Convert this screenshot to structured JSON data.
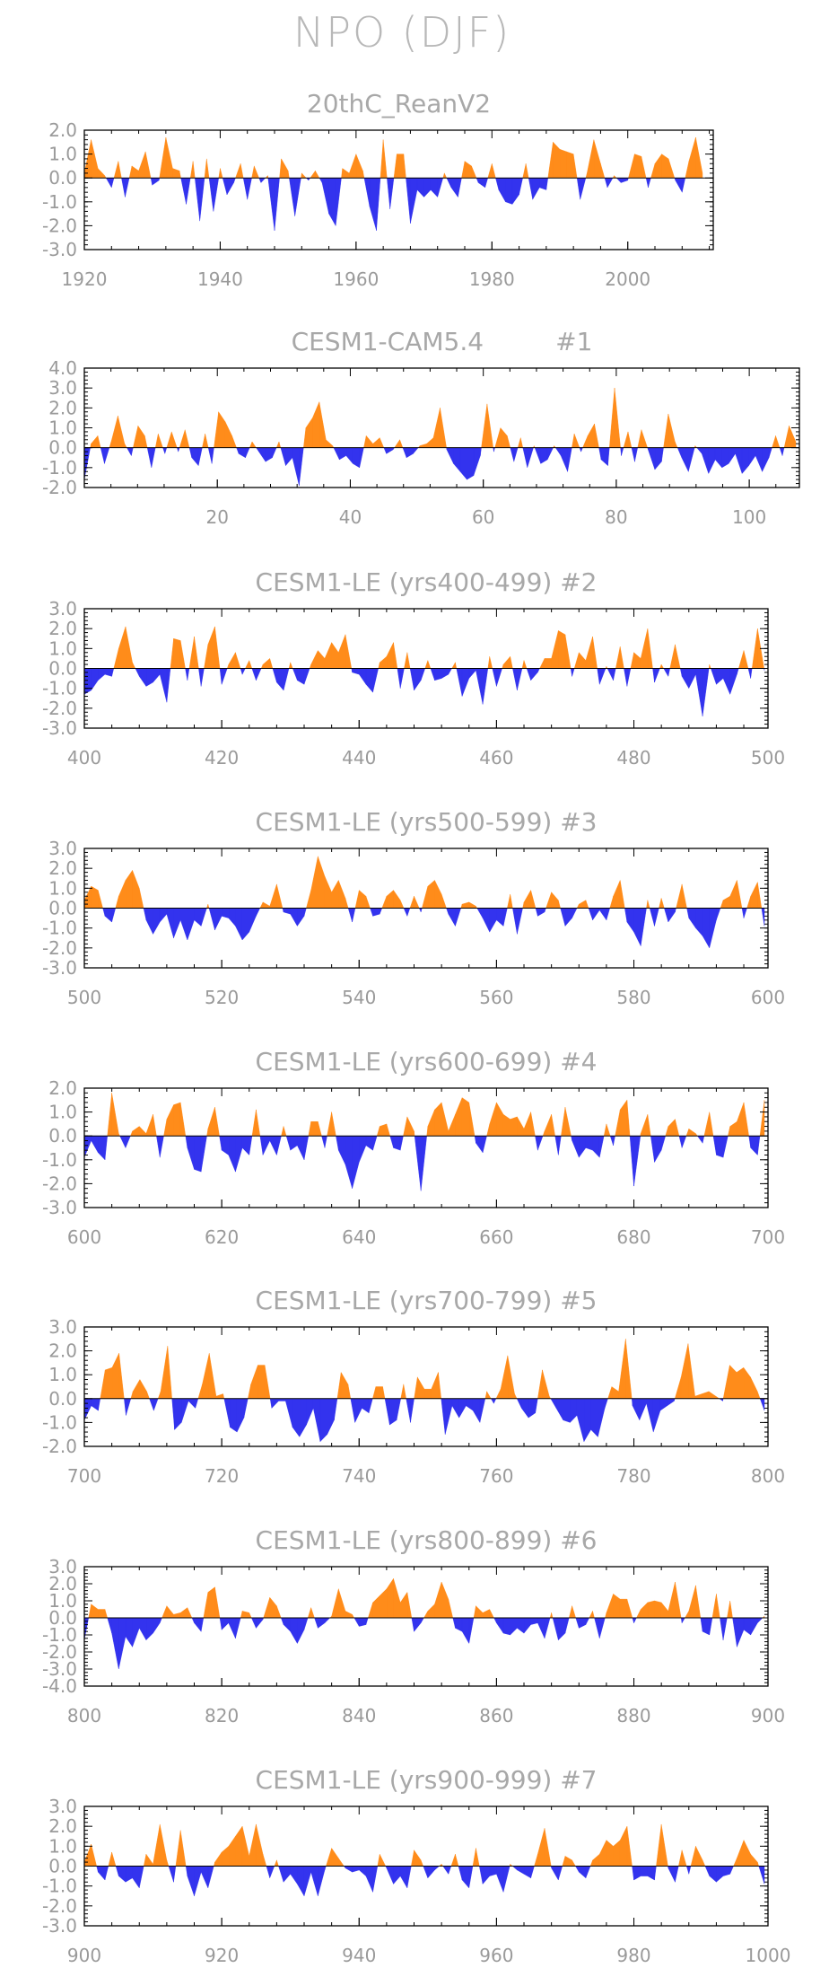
{
  "main_title": "NPO (DJF)",
  "colors": {
    "positive": "#ff8c1a",
    "negative": "#3333ee",
    "text": "#a8a8a8"
  },
  "chart_data": [
    {
      "type": "area",
      "title": "20thC_ReanV2",
      "xlim": [
        1920,
        2011
      ],
      "x_ticks": [
        1920,
        1940,
        1960,
        1980,
        2000
      ],
      "ylim": [
        -3.0,
        2.0
      ],
      "y_ticks": [
        2.0,
        1.0,
        0.0,
        -1.0,
        -2.0,
        -3.0
      ],
      "y_tick_labels": [
        "2.0",
        "1.0",
        "0.0",
        "-1.0",
        "-2.0",
        "-3.0"
      ],
      "values": [
        0.2,
        1.6,
        0.4,
        0.1,
        -0.4,
        0.7,
        -0.8,
        0.5,
        0.3,
        1.1,
        -0.3,
        -0.1,
        1.7,
        0.4,
        0.3,
        -1.1,
        0.7,
        -1.8,
        0.8,
        -1.4,
        0.4,
        -0.7,
        -0.2,
        0.6,
        -0.9,
        0.5,
        -0.2,
        0.1,
        -2.2,
        0.8,
        0.3,
        -1.6,
        0.2,
        -0.1,
        0.3,
        -0.2,
        -1.5,
        -2.0,
        0.4,
        0.2,
        1.0,
        0.3,
        -1.2,
        -2.2,
        1.6,
        -1.3,
        1.0,
        1.0,
        -1.9,
        -0.5,
        -0.8,
        -0.5,
        -0.8,
        0.2,
        -0.4,
        -0.8,
        0.7,
        0.5,
        -0.2,
        -0.4,
        0.6,
        -0.5,
        -1.0,
        -1.1,
        -0.7,
        0.6,
        -0.9,
        -0.4,
        -0.5,
        1.5,
        1.2,
        1.1,
        1.0,
        -0.9,
        0.2,
        1.6,
        0.6,
        -0.4,
        0.1,
        -0.2,
        -0.1,
        1.0,
        0.9,
        -0.4,
        0.6,
        1.0,
        0.8,
        -0.1,
        -0.6,
        0.7,
        1.7,
        0.2
      ]
    },
    {
      "type": "area",
      "title": "CESM1-CAM5.4         #1",
      "xlim": [
        0,
        107
      ],
      "x_ticks": [
        20,
        40,
        60,
        80,
        100
      ],
      "ylim": [
        -2.0,
        4.0
      ],
      "y_ticks": [
        4.0,
        3.0,
        2.0,
        1.0,
        0.0,
        -1.0,
        -2.0
      ],
      "y_tick_labels": [
        "4.0",
        "3.0",
        "2.0",
        "1.0",
        "0.0",
        "-1.0",
        "-2.0"
      ],
      "values": [
        -1.6,
        0.2,
        0.6,
        -0.8,
        0.3,
        1.6,
        0.2,
        -0.4,
        1.1,
        0.6,
        -1.0,
        0.7,
        -0.3,
        0.8,
        -0.2,
        0.9,
        -0.5,
        -0.9,
        0.7,
        -0.8,
        1.8,
        1.3,
        0.6,
        -0.3,
        -0.5,
        0.3,
        -0.2,
        -0.7,
        -0.5,
        0.3,
        -0.9,
        -0.5,
        -1.9,
        1.0,
        1.5,
        2.3,
        0.4,
        0.1,
        -0.6,
        -0.4,
        -0.8,
        -1.0,
        0.6,
        0.2,
        0.5,
        -0.3,
        -0.1,
        0.4,
        -0.5,
        -0.3,
        0.1,
        0.2,
        0.5,
        2.0,
        -0.1,
        -0.8,
        -1.2,
        -1.6,
        -1.4,
        -0.4,
        2.2,
        -0.2,
        1.0,
        0.6,
        -0.7,
        0.5,
        -1.0,
        0.1,
        -0.8,
        -0.6,
        0.1,
        -0.4,
        -1.2,
        0.7,
        -0.2,
        0.6,
        1.2,
        -0.6,
        -0.9,
        3.0,
        -0.4,
        0.8,
        -0.7,
        0.9,
        -0.1,
        -1.1,
        -0.7,
        1.7,
        0.3,
        -0.5,
        -1.2,
        0.1,
        -0.3,
        -1.3,
        -0.6,
        -1.0,
        -0.8,
        -0.3,
        -1.3,
        -0.9,
        -0.4,
        -1.2,
        -0.5,
        0.6,
        -0.4,
        1.1,
        0.3
      ]
    },
    {
      "type": "area",
      "title": "CESM1-LE (yrs400-499) #2",
      "xlim": [
        400,
        499
      ],
      "x_ticks": [
        400,
        420,
        440,
        460,
        480,
        500
      ],
      "ylim": [
        -3.0,
        3.0
      ],
      "y_ticks": [
        3.0,
        2.0,
        1.0,
        0.0,
        -1.0,
        -2.0,
        -3.0
      ],
      "y_tick_labels": [
        "3.0",
        "2.0",
        "1.0",
        "0.0",
        "-1.0",
        "-2.0",
        "-3.0"
      ],
      "values": [
        -1.3,
        -1.1,
        -0.6,
        -0.3,
        -0.4,
        1.0,
        2.1,
        0.3,
        -0.4,
        -0.9,
        -0.7,
        -0.3,
        -1.7,
        1.5,
        1.4,
        -0.6,
        1.6,
        -0.9,
        1.2,
        2.1,
        -0.8,
        0.2,
        0.8,
        -0.3,
        0.4,
        -0.6,
        0.2,
        0.5,
        -0.7,
        -1.1,
        0.3,
        -0.6,
        -0.8,
        0.2,
        0.9,
        0.5,
        1.3,
        0.8,
        1.7,
        -0.2,
        -0.3,
        -0.8,
        -1.2,
        0.3,
        0.6,
        1.3,
        -1.0,
        0.8,
        -1.1,
        -0.6,
        0.4,
        -0.6,
        -0.5,
        -0.3,
        0.3,
        -1.4,
        -0.5,
        -0.1,
        -1.8,
        0.6,
        -0.9,
        0.2,
        0.6,
        -1.1,
        0.4,
        -0.6,
        -0.2,
        0.5,
        0.5,
        1.9,
        1.7,
        -0.4,
        0.8,
        0.4,
        1.6,
        -0.8,
        0.1,
        -0.6,
        1.1,
        -0.9,
        0.8,
        0.5,
        2.0,
        -0.7,
        0.2,
        -0.4,
        1.2,
        -0.4,
        -1.0,
        -0.3,
        -2.4,
        0.2,
        -0.8,
        -0.5,
        -1.3,
        -0.3,
        0.9,
        -0.5,
        2.0,
        -0.1
      ]
    },
    {
      "type": "area",
      "title": "CESM1-LE (yrs500-599) #3",
      "xlim": [
        500,
        599
      ],
      "x_ticks": [
        500,
        520,
        540,
        560,
        580,
        600
      ],
      "ylim": [
        -3.0,
        3.0
      ],
      "y_ticks": [
        3.0,
        2.0,
        1.0,
        0.0,
        -1.0,
        -2.0,
        -3.0
      ],
      "y_tick_labels": [
        "3.0",
        "2.0",
        "1.0",
        "0.0",
        "-1.0",
        "-2.0",
        "-3.0"
      ],
      "values": [
        0.4,
        1.1,
        0.9,
        -0.4,
        -0.7,
        0.6,
        1.4,
        1.9,
        1.0,
        -0.6,
        -1.3,
        -0.7,
        -0.3,
        -1.5,
        -0.6,
        -1.6,
        -0.6,
        -0.9,
        0.2,
        -1.1,
        -0.4,
        -0.5,
        -0.9,
        -1.6,
        -1.2,
        -0.4,
        0.3,
        0.1,
        1.2,
        -0.2,
        -0.3,
        -0.9,
        -0.4,
        0.9,
        2.6,
        1.6,
        0.8,
        1.4,
        0.5,
        -0.7,
        0.9,
        0.6,
        -0.4,
        -0.3,
        0.6,
        0.9,
        0.4,
        -0.4,
        0.6,
        -0.2,
        1.1,
        1.4,
        0.7,
        -0.3,
        -0.9,
        0.2,
        0.3,
        0.1,
        -0.5,
        -1.2,
        -0.6,
        -0.9,
        0.7,
        -1.3,
        0.3,
        0.9,
        -0.4,
        -0.2,
        0.8,
        0.4,
        -0.9,
        -0.5,
        0.2,
        0.4,
        -0.6,
        -0.1,
        -0.6,
        0.6,
        1.4,
        -0.7,
        -1.2,
        -1.9,
        0.4,
        -0.9,
        0.5,
        -0.7,
        -0.2,
        1.2,
        -0.5,
        -1.0,
        -1.4,
        -2.0,
        -0.6,
        0.4,
        0.6,
        1.4,
        -0.5,
        0.6,
        1.3,
        -0.9
      ]
    },
    {
      "type": "area",
      "title": "CESM1-LE (yrs600-699) #4",
      "xlim": [
        600,
        699
      ],
      "x_ticks": [
        600,
        620,
        640,
        660,
        680,
        700
      ],
      "ylim": [
        -3.0,
        2.0
      ],
      "y_ticks": [
        2.0,
        1.0,
        0.0,
        -1.0,
        -2.0,
        -3.0
      ],
      "y_tick_labels": [
        "2.0",
        "1.0",
        "0.0",
        "-1.0",
        "-2.0",
        "-3.0"
      ],
      "values": [
        -0.9,
        -0.2,
        -0.7,
        -1.0,
        1.8,
        0.1,
        -0.5,
        0.2,
        0.4,
        0.1,
        0.9,
        -0.9,
        0.7,
        1.3,
        1.4,
        -0.5,
        -1.4,
        -1.5,
        0.3,
        1.2,
        -0.6,
        -0.8,
        -1.5,
        -0.5,
        -0.8,
        1.1,
        -0.8,
        -0.2,
        -0.8,
        0.4,
        -0.6,
        -0.4,
        -1.0,
        0.6,
        0.6,
        -0.5,
        1.0,
        -0.6,
        -1.2,
        -2.2,
        -1.1,
        -0.4,
        -0.6,
        0.4,
        0.5,
        -0.5,
        -0.6,
        0.8,
        0.2,
        -2.3,
        0.4,
        1.1,
        1.4,
        0.2,
        0.9,
        1.6,
        1.4,
        -0.3,
        -0.7,
        0.5,
        1.4,
        0.9,
        0.7,
        0.8,
        0.3,
        1.0,
        -0.6,
        0.2,
        0.9,
        -0.8,
        1.2,
        -0.2,
        -0.9,
        -0.5,
        -0.6,
        -0.9,
        0.5,
        -0.4,
        1.1,
        1.5,
        -2.1,
        0.1,
        0.9,
        -1.1,
        -0.6,
        0.4,
        0.7,
        -0.5,
        0.3,
        0.1,
        -0.3,
        1.0,
        -0.8,
        -0.9,
        0.4,
        0.6,
        1.4,
        -0.5,
        -0.8,
        1.5
      ]
    },
    {
      "type": "area",
      "title": "CESM1-LE (yrs700-799) #5",
      "xlim": [
        700,
        799
      ],
      "x_ticks": [
        700,
        720,
        740,
        760,
        780,
        800
      ],
      "ylim": [
        -2.0,
        3.0
      ],
      "y_ticks": [
        3.0,
        2.0,
        1.0,
        0.0,
        -1.0,
        -2.0
      ],
      "y_tick_labels": [
        "3.0",
        "2.0",
        "1.0",
        "0.0",
        "-1.0",
        "-2.0"
      ],
      "values": [
        -0.9,
        -0.3,
        -0.5,
        1.2,
        1.3,
        1.9,
        -0.7,
        0.3,
        0.8,
        0.3,
        -0.5,
        0.3,
        2.2,
        -1.3,
        -1.0,
        -0.1,
        -0.4,
        0.6,
        1.9,
        0.1,
        0.2,
        -1.2,
        -1.4,
        -0.8,
        0.6,
        1.4,
        1.4,
        -0.4,
        -0.1,
        -0.1,
        -1.2,
        -1.6,
        -1.1,
        -0.4,
        -1.8,
        -1.5,
        -0.9,
        1.1,
        0.6,
        -1.0,
        -0.4,
        -0.6,
        0.5,
        0.5,
        -1.1,
        -0.9,
        0.6,
        -1.0,
        0.9,
        0.4,
        0.4,
        1.1,
        -1.5,
        -0.3,
        -0.8,
        -0.3,
        -0.5,
        -1.0,
        0.3,
        -0.2,
        0.4,
        1.8,
        0.2,
        -0.4,
        -0.8,
        -0.6,
        1.2,
        0.1,
        -0.4,
        -0.9,
        -1.0,
        -0.7,
        -1.8,
        -1.3,
        -1.6,
        -0.4,
        0.5,
        0.3,
        2.5,
        -0.3,
        -0.9,
        -0.2,
        -1.4,
        -0.5,
        -0.3,
        -0.1,
        0.9,
        2.3,
        0.1,
        0.2,
        0.3,
        0.1,
        -0.1,
        1.4,
        1.1,
        1.3,
        0.9,
        0.3,
        -0.5
      ]
    },
    {
      "type": "area",
      "title": "CESM1-LE (yrs800-899) #6",
      "xlim": [
        800,
        899
      ],
      "x_ticks": [
        800,
        820,
        840,
        860,
        880,
        900
      ],
      "ylim": [
        -4.0,
        3.0
      ],
      "y_ticks": [
        3.0,
        2.0,
        1.0,
        0.0,
        -1.0,
        -2.0,
        -3.0,
        -4.0
      ],
      "y_tick_labels": [
        "3.0",
        "2.0",
        "1.0",
        "0.0",
        "-1.0",
        "-2.0",
        "-3.0",
        "-4.0"
      ],
      "values": [
        -1.3,
        0.8,
        0.5,
        0.5,
        -0.9,
        -3.0,
        -1.1,
        -1.7,
        -0.6,
        -1.3,
        -0.9,
        -0.3,
        0.7,
        0.2,
        0.3,
        0.6,
        -0.3,
        -0.8,
        1.5,
        1.8,
        -0.7,
        -0.3,
        -1.2,
        0.4,
        0.3,
        -0.6,
        -0.1,
        1.2,
        0.7,
        -0.4,
        -0.8,
        -1.5,
        -0.7,
        0.6,
        -0.6,
        -0.3,
        0.1,
        1.7,
        0.4,
        0.2,
        -0.5,
        -0.4,
        0.9,
        1.3,
        1.7,
        2.3,
        0.9,
        1.5,
        -0.8,
        -0.3,
        0.4,
        0.8,
        2.1,
        1.1,
        -0.6,
        -0.8,
        -1.5,
        0.7,
        0.3,
        0.5,
        -0.3,
        -0.9,
        -1.0,
        -0.6,
        -0.9,
        -0.4,
        -0.3,
        -1.2,
        0.3,
        -1.3,
        -0.9,
        0.7,
        -0.6,
        -0.4,
        0.4,
        -1.2,
        0.3,
        1.4,
        1.1,
        1.1,
        -0.3,
        0.5,
        0.9,
        1.0,
        0.9,
        0.4,
        2.1,
        -0.3,
        0.4,
        1.9,
        -0.8,
        -1.0,
        1.4,
        -1.3,
        1.0,
        -1.7,
        -0.7,
        -1.0,
        -0.3,
        0.1
      ]
    },
    {
      "type": "area",
      "title": "CESM1-LE (yrs900-999) #7",
      "xlim": [
        900,
        999
      ],
      "x_ticks": [
        900,
        920,
        940,
        960,
        980,
        1000
      ],
      "ylim": [
        -3.0,
        3.0
      ],
      "y_ticks": [
        3.0,
        2.0,
        1.0,
        0.0,
        -1.0,
        -2.0,
        -3.0
      ],
      "y_tick_labels": [
        "3.0",
        "2.0",
        "1.0",
        "0.0",
        "-1.0",
        "-2.0",
        "-3.0"
      ],
      "values": [
        0.2,
        1.1,
        -0.3,
        -0.7,
        0.7,
        -0.5,
        -0.8,
        -0.6,
        -1.1,
        0.6,
        0.1,
        2.1,
        0.3,
        -0.8,
        1.8,
        -0.5,
        -1.5,
        -0.3,
        -1.1,
        0.2,
        0.7,
        1.0,
        1.5,
        2.0,
        0.5,
        2.1,
        0.6,
        -0.6,
        0.3,
        -0.8,
        -0.4,
        -0.9,
        -1.5,
        -0.3,
        -1.5,
        -0.2,
        0.9,
        0.4,
        -0.1,
        -0.3,
        -0.2,
        -0.5,
        -1.3,
        0.6,
        -0.1,
        -0.9,
        -0.5,
        -1.1,
        0.8,
        0.3,
        -0.6,
        -0.2,
        0.1,
        -0.4,
        0.6,
        -0.7,
        -1.1,
        0.9,
        -0.9,
        -0.5,
        -0.4,
        -1.3,
        0.1,
        -0.2,
        -0.4,
        -0.6,
        0.6,
        1.9,
        -0.1,
        -0.7,
        0.5,
        0.3,
        -0.3,
        -0.6,
        0.3,
        0.6,
        1.3,
        1.0,
        1.3,
        2.0,
        -0.7,
        -0.5,
        -0.5,
        -0.7,
        2.1,
        -0.1,
        -0.8,
        0.8,
        -0.4,
        1.0,
        0.3,
        -0.5,
        -0.8,
        -0.5,
        -0.4,
        0.4,
        1.3,
        0.6,
        0.2,
        -0.9
      ]
    }
  ]
}
